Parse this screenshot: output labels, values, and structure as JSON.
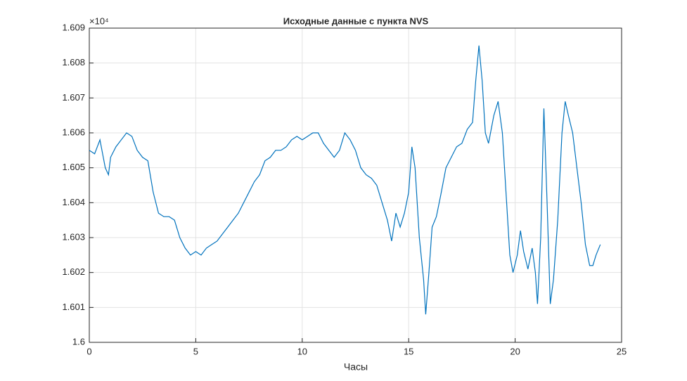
{
  "chart_data": {
    "type": "line",
    "title": "Исходные данные с пункта NVS",
    "x_label": "Часы",
    "y_exponent": "×10⁴",
    "xlim": [
      0,
      25
    ],
    "xticks": [
      0,
      5,
      10,
      15,
      20,
      25
    ],
    "ylim": [
      1.6,
      1.609
    ],
    "yticks": [
      1.6,
      1.601,
      1.602,
      1.603,
      1.604,
      1.605,
      1.606,
      1.607,
      1.608,
      1.609
    ],
    "grid": true,
    "x": [
      0,
      0.25,
      0.5,
      0.75,
      0.9,
      1.0,
      1.25,
      1.5,
      1.75,
      2.0,
      2.25,
      2.5,
      2.75,
      3.0,
      3.25,
      3.5,
      3.75,
      4.0,
      4.25,
      4.5,
      4.75,
      5.0,
      5.25,
      5.5,
      5.75,
      6.0,
      6.25,
      6.5,
      6.75,
      7.0,
      7.25,
      7.5,
      7.75,
      8.0,
      8.25,
      8.5,
      8.75,
      9.0,
      9.25,
      9.5,
      9.75,
      10.0,
      10.25,
      10.5,
      10.75,
      11.0,
      11.25,
      11.5,
      11.75,
      12.0,
      12.25,
      12.5,
      12.75,
      13.0,
      13.25,
      13.5,
      13.75,
      14.0,
      14.2,
      14.4,
      14.6,
      14.8,
      15.0,
      15.15,
      15.3,
      15.5,
      15.7,
      15.8,
      15.95,
      16.1,
      16.3,
      16.5,
      16.75,
      17.0,
      17.25,
      17.5,
      17.75,
      18.0,
      18.15,
      18.3,
      18.45,
      18.6,
      18.75,
      19.0,
      19.2,
      19.4,
      19.6,
      19.75,
      19.9,
      20.1,
      20.25,
      20.4,
      20.6,
      20.8,
      20.95,
      21.05,
      21.2,
      21.35,
      21.5,
      21.65,
      21.8,
      22.0,
      22.2,
      22.35,
      22.5,
      22.7,
      22.9,
      23.1,
      23.3,
      23.5,
      23.65,
      23.8,
      24.0
    ],
    "series": [
      {
        "name": "NVS",
        "color": "#0072bd",
        "values": [
          1.6055,
          1.6054,
          1.6058,
          1.605,
          1.6048,
          1.6053,
          1.6056,
          1.6058,
          1.606,
          1.6059,
          1.6055,
          1.6053,
          1.6052,
          1.6043,
          1.6037,
          1.6036,
          1.6036,
          1.6035,
          1.603,
          1.6027,
          1.6025,
          1.6026,
          1.6025,
          1.6027,
          1.6028,
          1.6029,
          1.6031,
          1.6033,
          1.6035,
          1.6037,
          1.604,
          1.6043,
          1.6046,
          1.6048,
          1.6052,
          1.6053,
          1.6055,
          1.6055,
          1.6056,
          1.6058,
          1.6059,
          1.6058,
          1.6059,
          1.606,
          1.606,
          1.6057,
          1.6055,
          1.6053,
          1.6055,
          1.606,
          1.6058,
          1.6055,
          1.605,
          1.6048,
          1.6047,
          1.6045,
          1.604,
          1.6035,
          1.6029,
          1.6037,
          1.6033,
          1.6037,
          1.6043,
          1.6056,
          1.605,
          1.603,
          1.6018,
          1.6008,
          1.602,
          1.6033,
          1.6036,
          1.6042,
          1.605,
          1.6053,
          1.6056,
          1.6057,
          1.6061,
          1.6063,
          1.6075,
          1.6085,
          1.6075,
          1.606,
          1.6057,
          1.6065,
          1.6069,
          1.606,
          1.604,
          1.6025,
          1.602,
          1.6025,
          1.6032,
          1.6026,
          1.6021,
          1.6027,
          1.602,
          1.6011,
          1.603,
          1.6067,
          1.604,
          1.6011,
          1.6018,
          1.6035,
          1.606,
          1.6069,
          1.6065,
          1.606,
          1.605,
          1.604,
          1.6028,
          1.6022,
          1.6022,
          1.6025,
          1.6028
        ]
      }
    ]
  }
}
